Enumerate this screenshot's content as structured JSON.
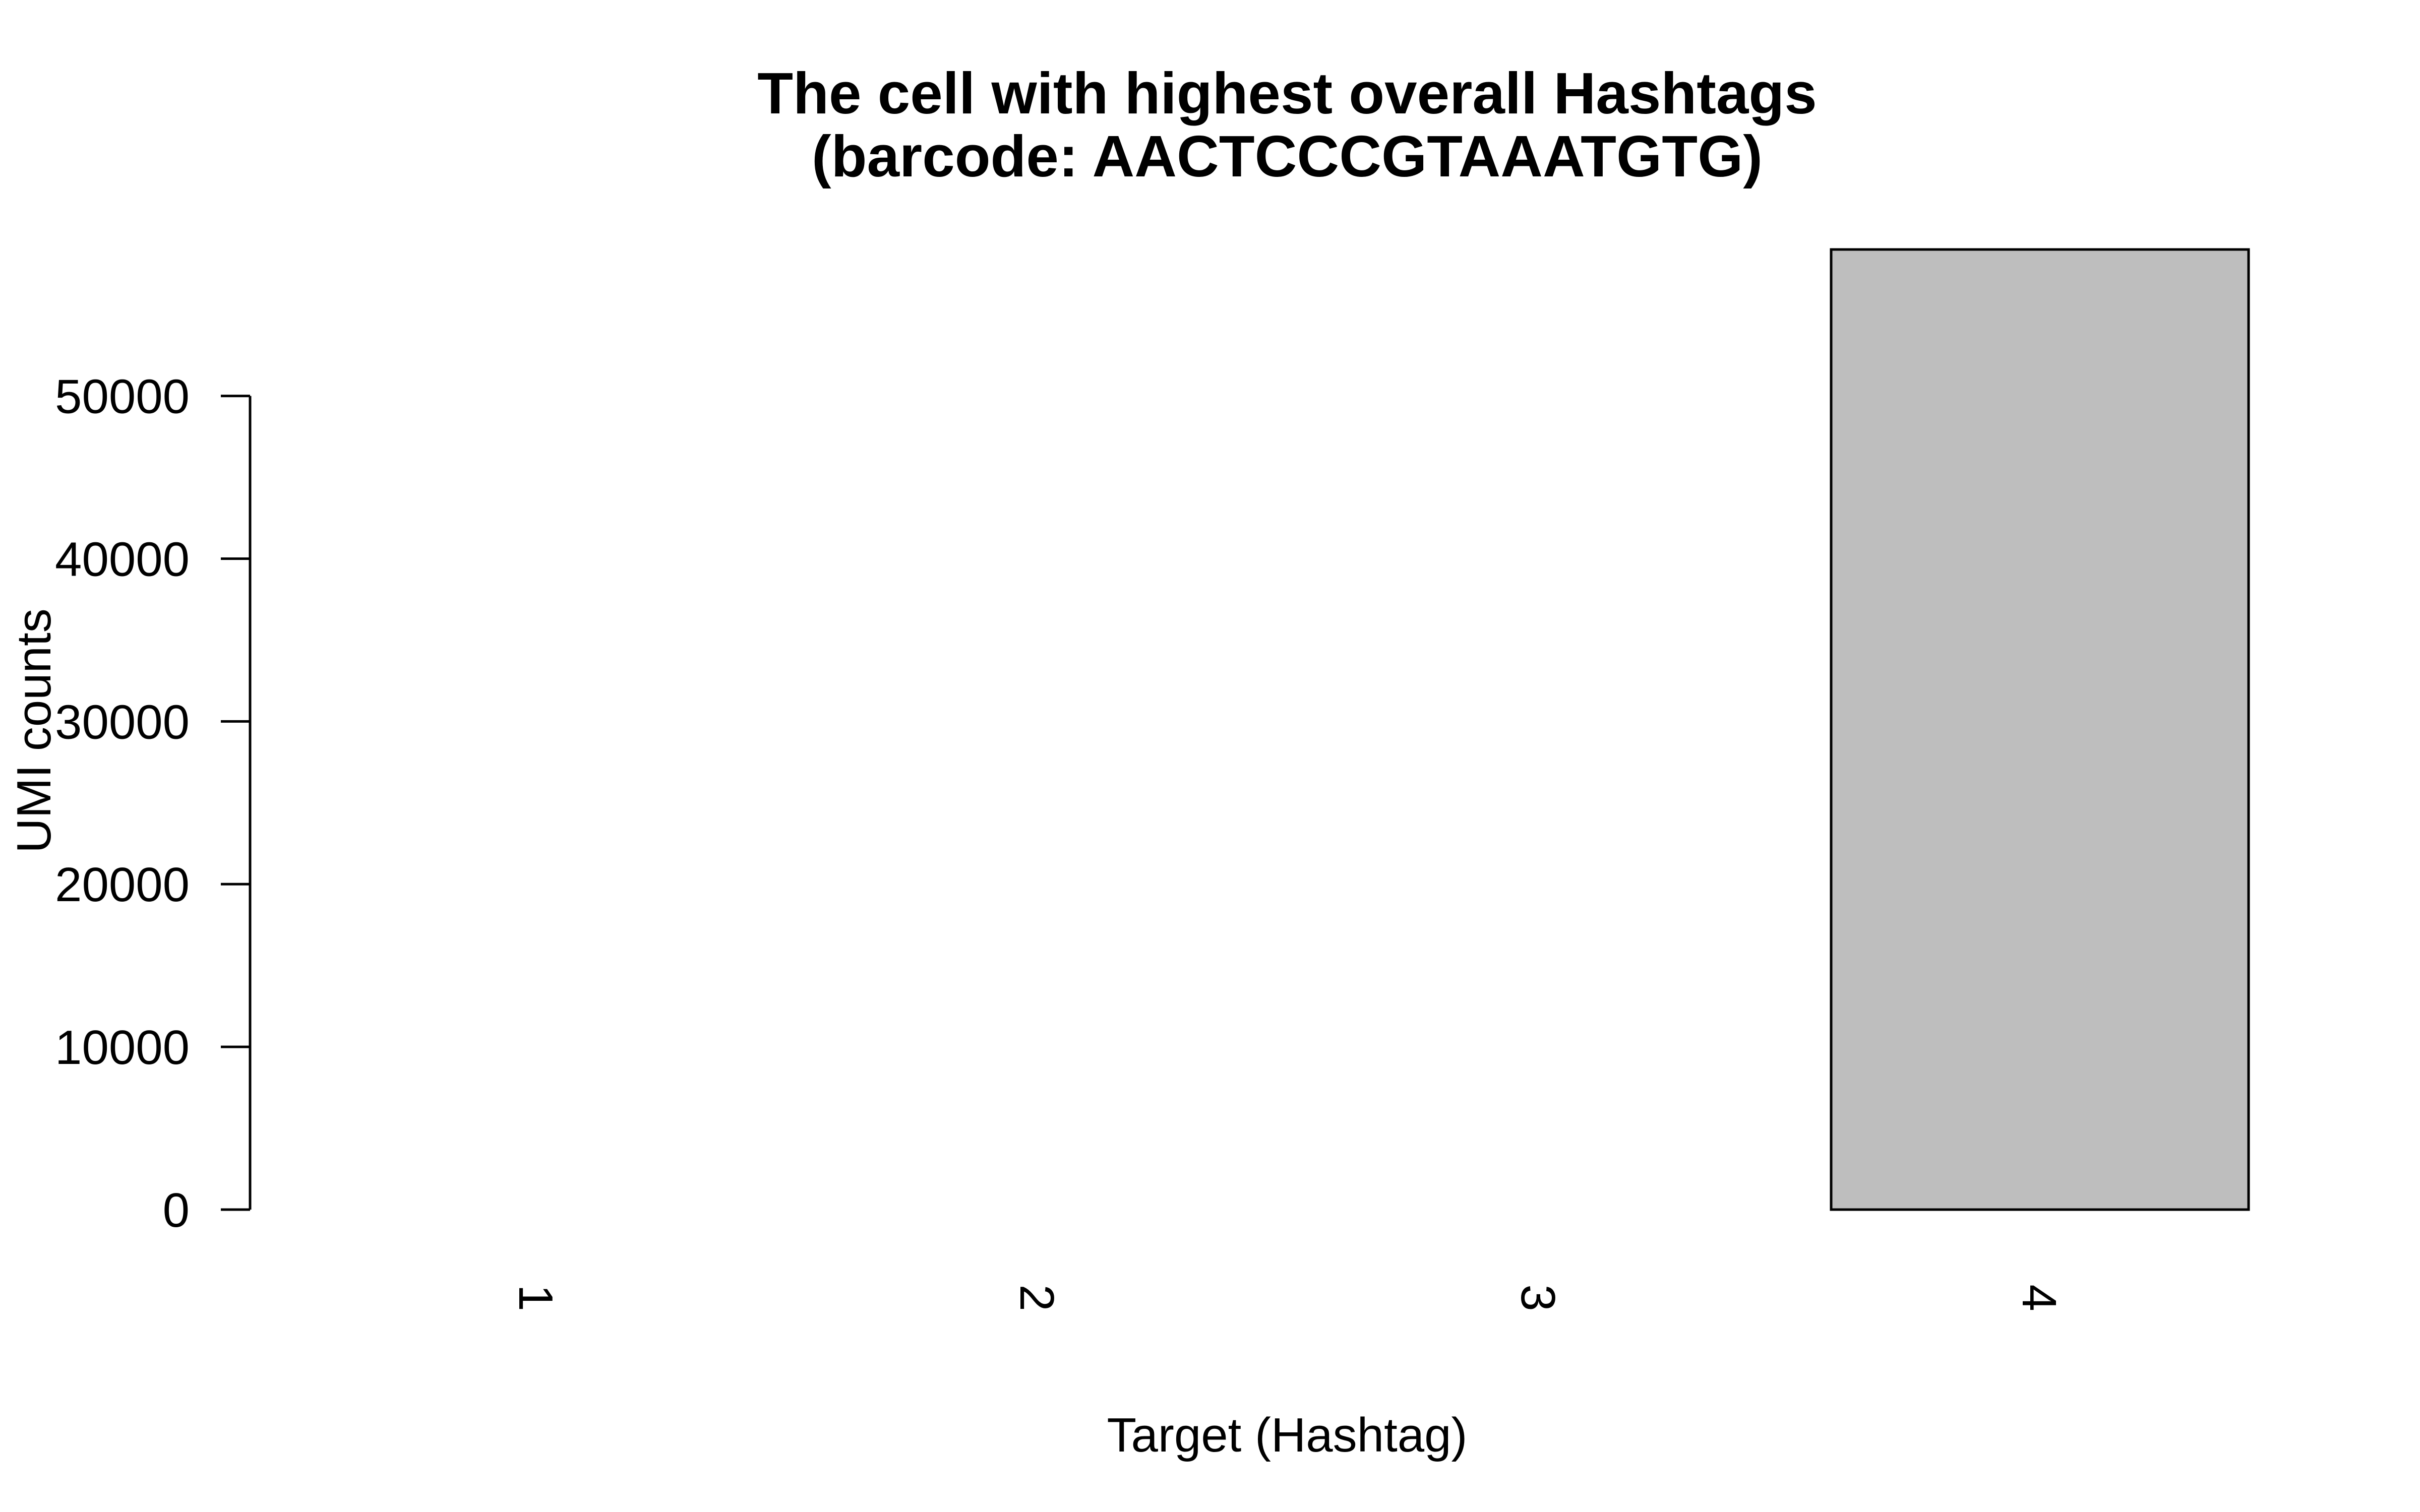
{
  "chart_data": {
    "type": "bar",
    "title": "The cell with highest overall Hashtags",
    "subtitle": "(barcode: AACTCCCGTAAATGTG)",
    "xlabel": "Target (Hashtag)",
    "ylabel": "UMI counts",
    "categories": [
      "1",
      "2",
      "3",
      "4"
    ],
    "values": [
      0,
      0,
      0,
      59000
    ],
    "ylim": [
      0,
      59000
    ],
    "yticks": [
      0,
      10000,
      20000,
      30000,
      40000,
      50000
    ],
    "ytick_labels": [
      "0",
      "10000",
      "20000",
      "30000",
      "40000",
      "50000"
    ],
    "bar_color": "#bebebe",
    "grid": false,
    "legend": "none"
  }
}
